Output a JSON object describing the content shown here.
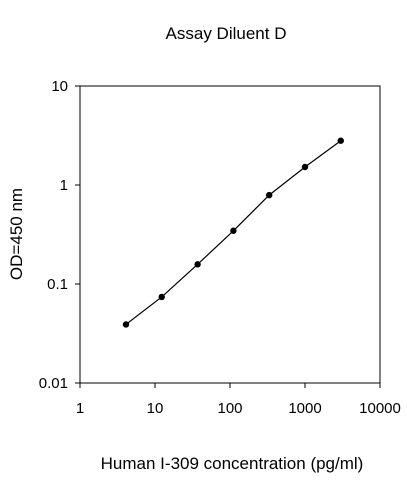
{
  "chart_data": {
    "type": "line",
    "title": "Assay Diluent D",
    "xlabel": "Human I-309 concentration (pg/ml)",
    "ylabel": "OD=450 nm",
    "x_scale": "log",
    "y_scale": "log",
    "xlim": [
      1,
      10000
    ],
    "ylim": [
      0.01,
      10
    ],
    "x_ticks": [
      1,
      10,
      100,
      1000,
      10000
    ],
    "x_tick_labels": [
      "1",
      "10",
      "100",
      "1000",
      "10000"
    ],
    "y_ticks": [
      0.01,
      0.1,
      1,
      10
    ],
    "y_tick_labels": [
      "0.01",
      "0.1",
      "1",
      "10"
    ],
    "grid": false,
    "series": [
      {
        "x": [
          4.1,
          12.3,
          37,
          111,
          333,
          1000,
          3000
        ],
        "y": [
          0.039,
          0.074,
          0.158,
          0.345,
          0.79,
          1.52,
          2.8
        ]
      }
    ],
    "colors": {
      "line": "#000000",
      "marker": "#000000",
      "axis": "#000000"
    }
  }
}
